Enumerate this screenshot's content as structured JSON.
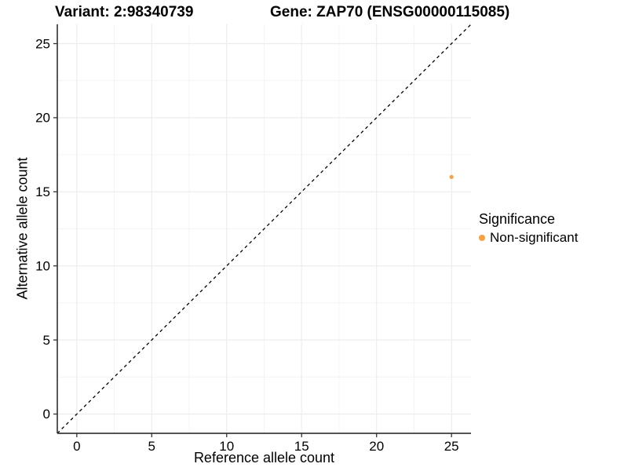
{
  "header": {
    "variant_title": "Variant: 2:98340739",
    "gene_title": "Gene: ZAP70 (ENSG00000115085)"
  },
  "chart_data": {
    "type": "scatter",
    "title": {
      "variant": "Variant: 2:98340739",
      "gene": "Gene: ZAP70 (ENSG00000115085)"
    },
    "xlabel": "Reference allele count",
    "ylabel": "Alternative allele count",
    "xlim": [
      -1.3,
      26.3
    ],
    "ylim": [
      -1.3,
      26.3
    ],
    "x_ticks": [
      0,
      5,
      10,
      15,
      20,
      25
    ],
    "y_ticks": [
      0,
      5,
      10,
      15,
      20,
      25
    ],
    "x_minor_ticks": [
      2.5,
      7.5,
      12.5,
      17.5,
      22.5
    ],
    "y_minor_ticks": [
      2.5,
      7.5,
      12.5,
      17.5,
      22.5
    ],
    "grid": true,
    "identity_line": {
      "style": "dashed",
      "slope": 1,
      "intercept": 0,
      "color": "#000000"
    },
    "series": [
      {
        "name": "Non-significant",
        "color": "#F9A03F",
        "points": [
          {
            "x": 25,
            "y": 16
          }
        ]
      }
    ],
    "legend": {
      "title": "Significance",
      "position": "right",
      "entries": [
        {
          "label": "Non-significant",
          "color": "#F9A03F"
        }
      ]
    }
  },
  "colors": {
    "background": "#ffffff",
    "axis_line": "#3c3c3c",
    "tick_mark": "#333333",
    "grid_major": "#ebebeb",
    "grid_minor": "#f4f4f4",
    "text": "#000000"
  }
}
